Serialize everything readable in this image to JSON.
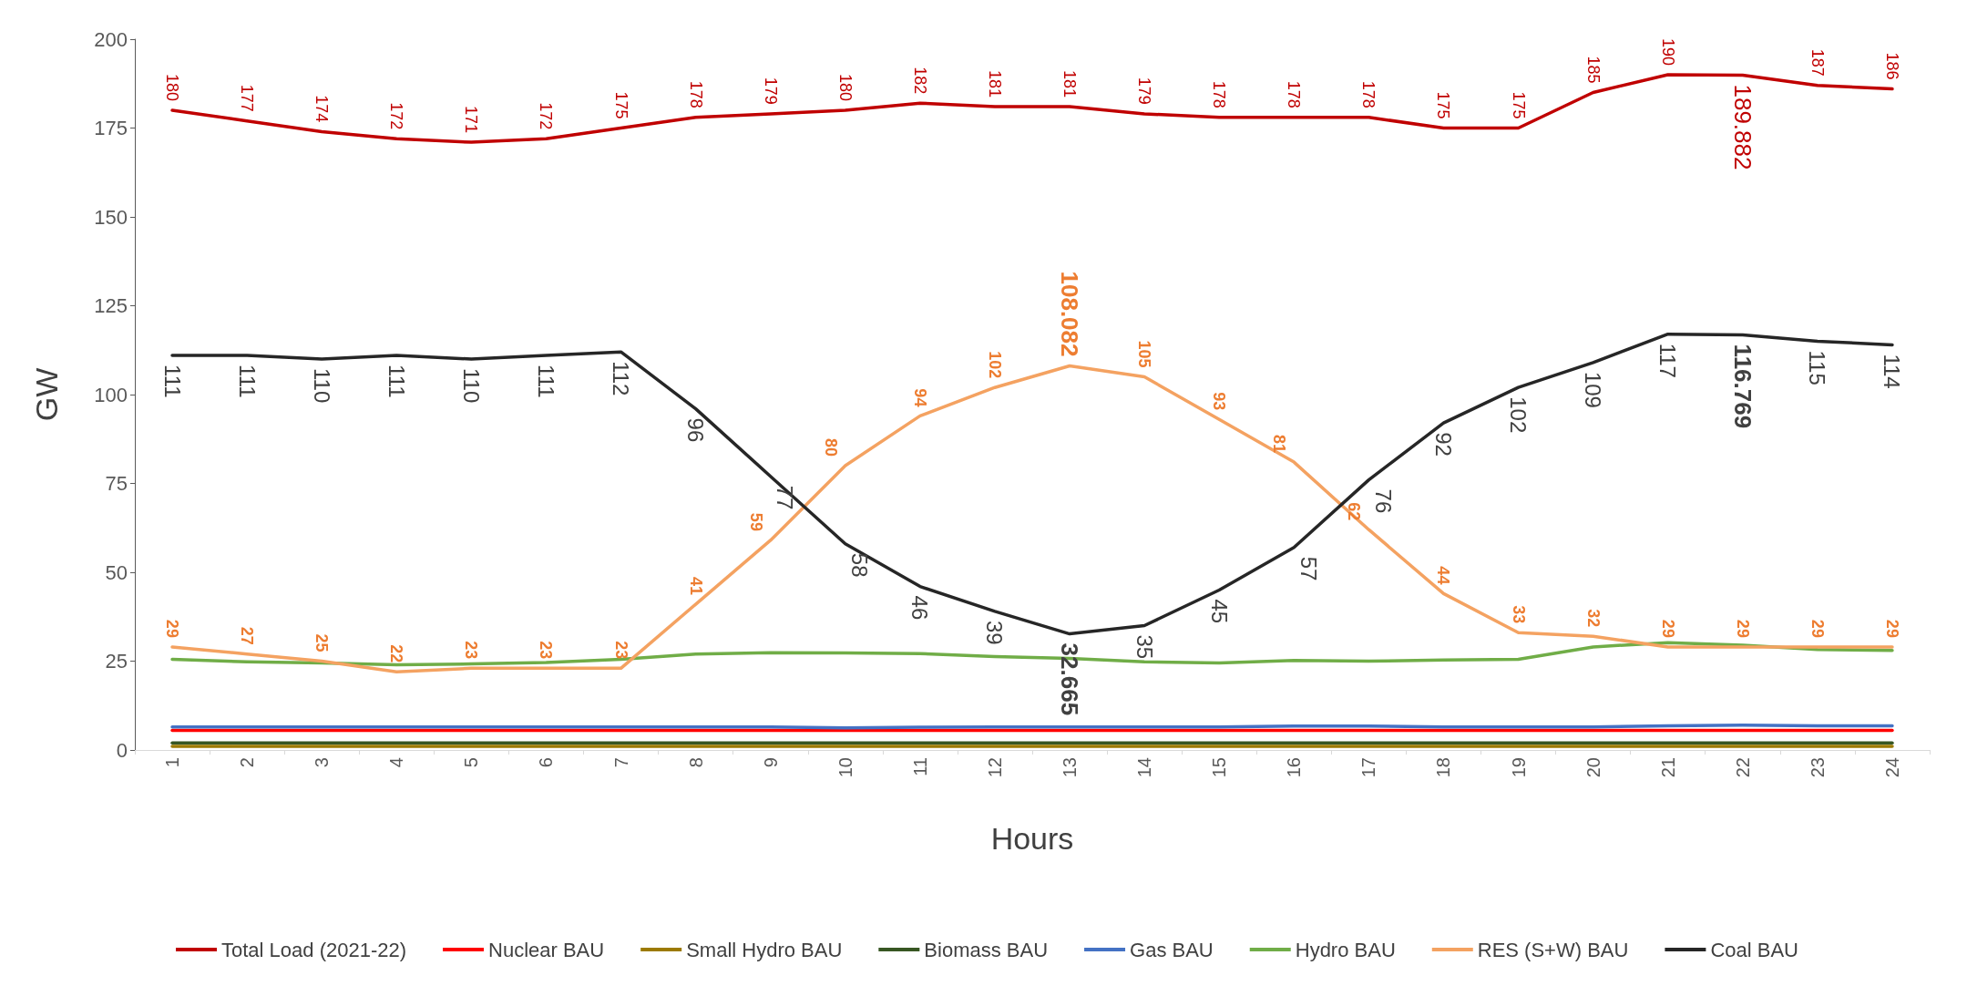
{
  "chart_data": {
    "type": "line",
    "xlabel": "Hours",
    "ylabel": "GW",
    "categories": [
      "1",
      "2",
      "3",
      "4",
      "5",
      "6",
      "7",
      "8",
      "9",
      "10",
      "11",
      "12",
      "13",
      "14",
      "15",
      "16",
      "17",
      "18",
      "19",
      "20",
      "21",
      "22",
      "23",
      "24"
    ],
    "ylim": [
      0,
      200
    ],
    "yticks": [
      0,
      25,
      50,
      75,
      100,
      125,
      150,
      175,
      200
    ],
    "grid": false,
    "legend": "bottom",
    "marker": "none",
    "line_style": "solid",
    "series": [
      {
        "name": "Total Load (2021-22)",
        "color": "#c00000",
        "values": [
          180,
          177,
          174,
          172,
          171,
          172,
          175,
          178,
          179,
          180,
          182,
          181,
          181,
          179,
          178,
          178,
          178,
          175,
          175,
          185,
          190,
          189.882,
          187,
          186
        ],
        "value_labels": [
          "180",
          "177",
          "174",
          "172",
          "171",
          "172",
          "175",
          "178",
          "179",
          "180",
          "182",
          "181",
          "181",
          "179",
          "178",
          "178",
          "178",
          "175",
          "175",
          "185",
          "190",
          "189.882",
          "187",
          "186"
        ]
      },
      {
        "name": "Nuclear BAU",
        "color": "#ff0000",
        "values": [
          5.5,
          5.5,
          5.5,
          5.5,
          5.5,
          5.5,
          5.5,
          5.5,
          5.5,
          5.5,
          5.5,
          5.5,
          5.5,
          5.5,
          5.5,
          5.5,
          5.5,
          5.5,
          5.5,
          5.5,
          5.5,
          5.5,
          5.5,
          5.5
        ]
      },
      {
        "name": "Small Hydro BAU",
        "color": "#9c7a00",
        "values": [
          1,
          1,
          1,
          1,
          1,
          1,
          1,
          1,
          1,
          1,
          1,
          1,
          1,
          1,
          1,
          1,
          1,
          1,
          1,
          1,
          1,
          1,
          1,
          1
        ]
      },
      {
        "name": "Biomass BAU",
        "color": "#375623",
        "values": [
          2,
          2,
          2,
          2,
          2,
          2,
          2,
          2,
          2,
          2,
          2,
          2,
          2,
          2,
          2,
          2,
          2,
          2,
          2,
          2,
          2,
          2,
          2,
          2
        ]
      },
      {
        "name": "Gas BAU",
        "color": "#4472c4",
        "values": [
          6.5,
          6.5,
          6.5,
          6.5,
          6.5,
          6.5,
          6.5,
          6.5,
          6.5,
          6.2,
          6.4,
          6.5,
          6.5,
          6.5,
          6.5,
          6.7,
          6.7,
          6.5,
          6.5,
          6.5,
          6.8,
          7,
          6.8,
          6.8
        ]
      },
      {
        "name": "Hydro BAU",
        "color": "#70ad47",
        "values": [
          25.5,
          24.8,
          24.5,
          24,
          24.2,
          24.6,
          25.5,
          27,
          27.4,
          27.3,
          27.1,
          26.3,
          25.8,
          24.8,
          24.5,
          25.2,
          25,
          25.3,
          25.5,
          29,
          30.2,
          29.5,
          28.3,
          28
        ]
      },
      {
        "name": "RES (S+W) BAU",
        "color": "#f4a261",
        "values": [
          29,
          27,
          25,
          22,
          23,
          23,
          23,
          41,
          59,
          80,
          94,
          102,
          108.082,
          105,
          93,
          81,
          62,
          44,
          33,
          32,
          29,
          29,
          29,
          29
        ],
        "value_labels": [
          "29",
          "27",
          "25",
          "22",
          "23",
          "23",
          "23",
          "41",
          "59",
          "80",
          "94",
          "102",
          "108.082",
          "105",
          "93",
          "81",
          "62",
          "44",
          "33",
          "32",
          "29",
          "29",
          "29",
          "29"
        ]
      },
      {
        "name": "Coal BAU",
        "color": "#262626",
        "values": [
          111,
          111,
          110,
          111,
          110,
          111,
          112,
          96,
          77,
          58,
          46,
          39,
          32.665,
          35,
          45,
          57,
          76,
          92,
          102,
          109,
          117,
          116.769,
          115,
          114
        ],
        "value_labels": [
          "111",
          "111",
          "110",
          "111",
          "110",
          "111",
          "112",
          "96",
          "77",
          "58",
          "46",
          "39",
          "32.665",
          "35",
          "45",
          "57",
          "76",
          "92",
          "102",
          "109",
          "117",
          "116.769",
          "115",
          "114"
        ]
      }
    ]
  }
}
